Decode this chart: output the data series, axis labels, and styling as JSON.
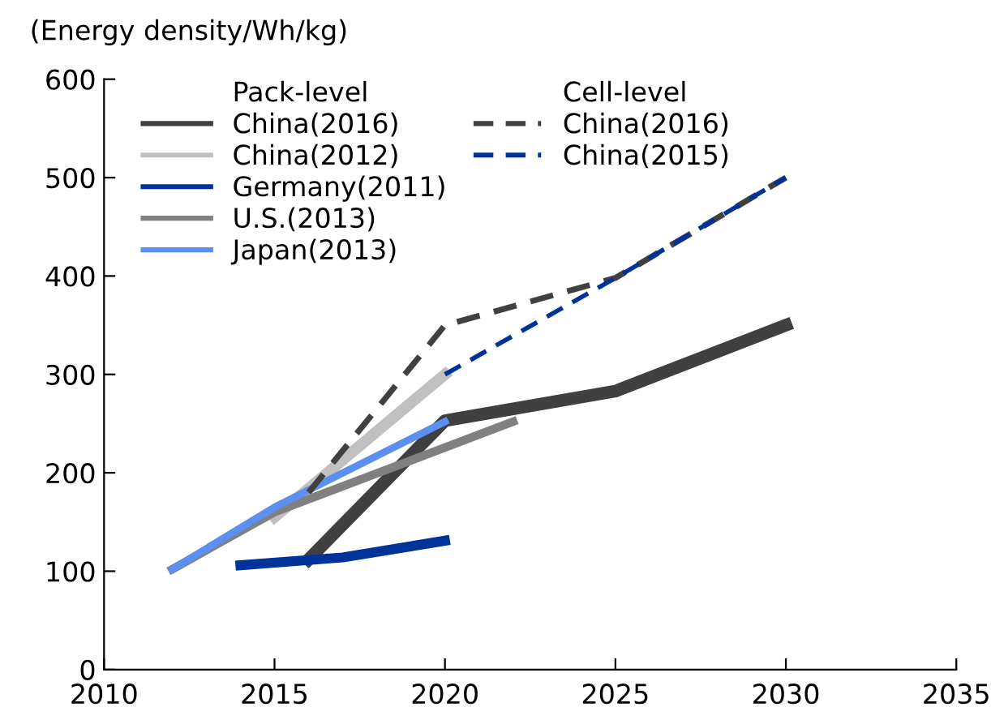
{
  "chart_data": {
    "type": "line",
    "ylabel": "(Energy density/Wh/kg)",
    "annotations": [
      "Pack-level",
      "Cell-level"
    ],
    "xlim": [
      2010,
      2035
    ],
    "xticks": [
      2010,
      2015,
      2020,
      2025,
      2030,
      2035
    ],
    "ylim": [
      0,
      600
    ],
    "yticks": [
      0,
      100,
      200,
      300,
      400,
      500,
      600
    ],
    "grid": false,
    "legend": "top left",
    "marker": "none",
    "series": [
      {
        "name": "China(2016)",
        "color": "#404040",
        "line_style": "solid",
        "x": [
          2016,
          2020,
          2025,
          2030
        ],
        "values": [
          112,
          253,
          283,
          350
        ]
      },
      {
        "name": "China(2012)",
        "color": "#c0c0c0",
        "line_style": "solid",
        "x": [
          2015,
          2020
        ],
        "values": [
          155,
          300
        ]
      },
      {
        "name": "Germany(2011)",
        "color": "#003399",
        "line_style": "solid",
        "x": [
          2014,
          2017,
          2020
        ],
        "values": [
          106,
          114,
          131
        ]
      },
      {
        "name": "U.S.(2013)",
        "color": "#808080",
        "line_style": "solid",
        "x": [
          2012,
          2015,
          2022
        ],
        "values": [
          102,
          160,
          252
        ]
      },
      {
        "name": "Japan(2013)",
        "color": "#5b8ff0",
        "line_style": "solid",
        "x": [
          2012,
          2015,
          2020
        ],
        "values": [
          102,
          165,
          252
        ]
      },
      {
        "name": "China(2016)",
        "color": "#404040",
        "line_style": "dashed",
        "x": [
          2016,
          2020,
          2025,
          2030
        ],
        "values": [
          180,
          350,
          398,
          500
        ]
      },
      {
        "name": "China(2015)",
        "color": "#003399",
        "line_style": "dashed",
        "x": [
          2020,
          2025,
          2030
        ],
        "values": [
          300,
          398,
          500
        ]
      }
    ]
  }
}
